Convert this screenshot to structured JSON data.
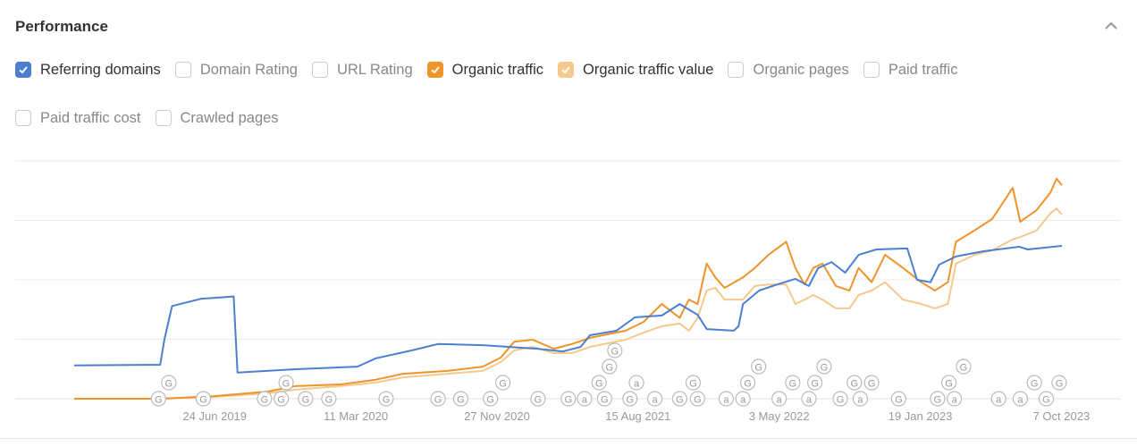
{
  "header": {
    "title": "Performance",
    "collapse_icon": "chevron-up-icon"
  },
  "legend": [
    {
      "label": "Referring domains",
      "checked": true,
      "color": "#4a7fd1"
    },
    {
      "label": "Domain Rating",
      "checked": false
    },
    {
      "label": "URL Rating",
      "checked": false
    },
    {
      "label": "Organic traffic",
      "checked": true,
      "color": "#f0932b"
    },
    {
      "label": "Organic traffic value",
      "checked": true,
      "color": "#f5c88e"
    },
    {
      "label": "Organic pages",
      "checked": false
    },
    {
      "label": "Paid traffic",
      "checked": false
    },
    {
      "label": "Paid traffic cost",
      "checked": false
    },
    {
      "label": "Crawled pages",
      "checked": false
    }
  ],
  "chart_data": {
    "type": "line",
    "xlim": [
      "2018-10-07",
      "2023-10-08"
    ],
    "ylim": [
      0,
      100
    ],
    "grid": true,
    "x_tick_labels": [
      "24 Jun 2019",
      "11 Mar 2020",
      "27 Nov 2020",
      "15 Aug 2021",
      "3 May 2022",
      "19 Jan 2023",
      "7 Oct 2023"
    ],
    "x_ticks": [
      "2019-06-24",
      "2020-03-11",
      "2020-11-27",
      "2021-08-15",
      "2022-05-03",
      "2023-01-19",
      "2023-10-07"
    ],
    "series": [
      {
        "name": "Referring domains",
        "color": "#4a7fd1",
        "points": [
          [
            "2018-10-07",
            14
          ],
          [
            "2019-03-15",
            14.3
          ],
          [
            "2019-03-23",
            25
          ],
          [
            "2019-04-06",
            39
          ],
          [
            "2019-05-29",
            42
          ],
          [
            "2019-07-29",
            43
          ],
          [
            "2019-08-05",
            11
          ],
          [
            "2019-11-20",
            12.4
          ],
          [
            "2020-03-14",
            13.5
          ],
          [
            "2020-04-17",
            17
          ],
          [
            "2020-06-22",
            20.3
          ],
          [
            "2020-08-10",
            23
          ],
          [
            "2020-11-01",
            22.5
          ],
          [
            "2021-02-10",
            21
          ],
          [
            "2021-03-29",
            19.9
          ],
          [
            "2021-05-01",
            21.8
          ],
          [
            "2021-05-18",
            26.7
          ],
          [
            "2021-07-06",
            28.6
          ],
          [
            "2021-08-09",
            34.2
          ],
          [
            "2021-09-28",
            35
          ],
          [
            "2021-10-31",
            39.8
          ],
          [
            "2021-12-03",
            35.3
          ],
          [
            "2021-12-20",
            29.3
          ],
          [
            "2022-02-08",
            28.6
          ],
          [
            "2022-02-17",
            30.5
          ],
          [
            "2022-02-25",
            39.8
          ],
          [
            "2022-03-27",
            45.5
          ],
          [
            "2022-04-30",
            48.1
          ],
          [
            "2022-06-02",
            50.4
          ],
          [
            "2022-06-27",
            47.4
          ],
          [
            "2022-07-14",
            54.9
          ],
          [
            "2022-08-08",
            57.5
          ],
          [
            "2022-09-02",
            53
          ],
          [
            "2022-09-27",
            60.5
          ],
          [
            "2022-10-30",
            62.8
          ],
          [
            "2022-12-26",
            63.2
          ],
          [
            "2023-01-13",
            50
          ],
          [
            "2023-02-07",
            49
          ],
          [
            "2023-02-23",
            56.4
          ],
          [
            "2023-03-26",
            59.8
          ],
          [
            "2023-05-15",
            62
          ],
          [
            "2023-07-21",
            63.9
          ],
          [
            "2023-08-06",
            62.8
          ],
          [
            "2023-10-08",
            64.3
          ]
        ]
      },
      {
        "name": "Organic traffic",
        "color": "#f0932b",
        "points": [
          [
            "2018-10-07",
            0
          ],
          [
            "2019-03-15",
            0
          ],
          [
            "2019-06-23",
            1.1
          ],
          [
            "2019-09-30",
            3
          ],
          [
            "2019-11-20",
            5.3
          ],
          [
            "2020-02-11",
            6
          ],
          [
            "2020-04-17",
            8
          ],
          [
            "2020-06-06",
            10.5
          ],
          [
            "2020-08-27",
            11.7
          ],
          [
            "2020-11-01",
            13.5
          ],
          [
            "2020-12-04",
            17.3
          ],
          [
            "2020-12-29",
            24
          ],
          [
            "2021-02-01",
            24.8
          ],
          [
            "2021-03-12",
            21
          ],
          [
            "2021-04-15",
            23
          ],
          [
            "2021-05-18",
            25.6
          ],
          [
            "2021-07-23",
            28.6
          ],
          [
            "2021-08-25",
            32.3
          ],
          [
            "2021-09-28",
            39.8
          ],
          [
            "2021-10-31",
            34
          ],
          [
            "2021-11-17",
            41.7
          ],
          [
            "2021-12-03",
            39.8
          ],
          [
            "2021-12-20",
            56.8
          ],
          [
            "2022-01-05",
            51
          ],
          [
            "2022-01-22",
            46.6
          ],
          [
            "2022-02-25",
            51
          ],
          [
            "2022-03-19",
            55
          ],
          [
            "2022-04-13",
            60.5
          ],
          [
            "2022-05-16",
            66
          ],
          [
            "2022-06-02",
            55
          ],
          [
            "2022-06-19",
            48
          ],
          [
            "2022-07-05",
            55
          ],
          [
            "2022-07-22",
            56.8
          ],
          [
            "2022-08-16",
            47.4
          ],
          [
            "2022-09-10",
            45.5
          ],
          [
            "2022-09-27",
            55
          ],
          [
            "2022-10-21",
            49
          ],
          [
            "2022-11-15",
            60.5
          ],
          [
            "2022-12-18",
            55
          ],
          [
            "2023-01-21",
            49
          ],
          [
            "2023-02-15",
            45.5
          ],
          [
            "2023-03-11",
            49
          ],
          [
            "2023-03-26",
            66
          ],
          [
            "2023-04-29",
            70.7
          ],
          [
            "2023-06-01",
            75.6
          ],
          [
            "2023-07-09",
            88.7
          ],
          [
            "2023-07-23",
            74.4
          ],
          [
            "2023-08-22",
            79.3
          ],
          [
            "2023-09-17",
            86.8
          ],
          [
            "2023-09-28",
            92.5
          ],
          [
            "2023-10-08",
            89.8
          ]
        ]
      },
      {
        "name": "Organic traffic value",
        "color": "#f5c88e",
        "points": [
          [
            "2018-10-07",
            0
          ],
          [
            "2019-03-15",
            0
          ],
          [
            "2019-06-23",
            0.8
          ],
          [
            "2019-09-30",
            2.3
          ],
          [
            "2019-11-20",
            3.8
          ],
          [
            "2020-02-11",
            5.3
          ],
          [
            "2020-04-17",
            6.8
          ],
          [
            "2020-06-06",
            9
          ],
          [
            "2020-08-27",
            10.5
          ],
          [
            "2020-11-01",
            11.7
          ],
          [
            "2020-12-04",
            15.4
          ],
          [
            "2020-12-29",
            20.3
          ],
          [
            "2021-02-01",
            21.8
          ],
          [
            "2021-03-12",
            19.2
          ],
          [
            "2021-04-15",
            19.2
          ],
          [
            "2021-05-18",
            21.8
          ],
          [
            "2021-07-23",
            24.8
          ],
          [
            "2021-08-25",
            27.8
          ],
          [
            "2021-09-28",
            30.5
          ],
          [
            "2021-10-31",
            31.6
          ],
          [
            "2021-11-17",
            28.6
          ],
          [
            "2021-12-03",
            34
          ],
          [
            "2021-12-20",
            45.5
          ],
          [
            "2022-01-05",
            46.6
          ],
          [
            "2022-01-22",
            41.7
          ],
          [
            "2022-02-25",
            41.7
          ],
          [
            "2022-03-19",
            47.4
          ],
          [
            "2022-04-13",
            48
          ],
          [
            "2022-05-16",
            48
          ],
          [
            "2022-06-02",
            39.8
          ],
          [
            "2022-06-19",
            41.7
          ],
          [
            "2022-07-05",
            43.6
          ],
          [
            "2022-07-22",
            41.7
          ],
          [
            "2022-08-16",
            38
          ],
          [
            "2022-09-10",
            38
          ],
          [
            "2022-09-27",
            43.6
          ],
          [
            "2022-10-21",
            45.5
          ],
          [
            "2022-11-15",
            49
          ],
          [
            "2022-12-18",
            41.7
          ],
          [
            "2023-01-21",
            39.8
          ],
          [
            "2023-02-15",
            38
          ],
          [
            "2023-03-11",
            39.8
          ],
          [
            "2023-03-26",
            56.8
          ],
          [
            "2023-04-29",
            60.5
          ],
          [
            "2023-06-01",
            62.4
          ],
          [
            "2023-07-09",
            67
          ],
          [
            "2023-07-23",
            68
          ],
          [
            "2023-08-22",
            70.7
          ],
          [
            "2023-09-17",
            78
          ],
          [
            "2023-09-28",
            80
          ],
          [
            "2023-10-08",
            77.4
          ]
        ]
      }
    ],
    "annotations": [
      [
        "2019-03-12",
        "G"
      ],
      [
        "2019-03-31",
        "G"
      ],
      [
        "2019-06-03",
        "G"
      ],
      [
        "2019-09-24",
        "G"
      ],
      [
        "2019-10-25",
        "G"
      ],
      [
        "2019-11-03",
        "G"
      ],
      [
        "2019-12-09",
        "G"
      ],
      [
        "2020-01-21",
        "G"
      ],
      [
        "2020-05-06",
        "G"
      ],
      [
        "2020-08-10",
        "G"
      ],
      [
        "2020-09-21",
        "G"
      ],
      [
        "2020-11-15",
        "G"
      ],
      [
        "2020-12-08",
        "G"
      ],
      [
        "2021-02-11",
        "G"
      ],
      [
        "2021-04-08",
        "G"
      ],
      [
        "2021-05-08",
        "a"
      ],
      [
        "2021-06-04",
        "G"
      ],
      [
        "2021-06-14",
        "G"
      ],
      [
        "2021-06-23",
        "G"
      ],
      [
        "2021-07-03",
        "G"
      ],
      [
        "2021-07-31",
        "G"
      ],
      [
        "2021-08-12",
        "a"
      ],
      [
        "2021-09-15",
        "a"
      ],
      [
        "2021-10-31",
        "G"
      ],
      [
        "2021-11-25",
        "G"
      ],
      [
        "2021-12-03",
        "G"
      ],
      [
        "2022-01-25",
        "a"
      ],
      [
        "2022-02-25",
        "a"
      ],
      [
        "2022-03-06",
        "G"
      ],
      [
        "2022-03-26",
        "G"
      ],
      [
        "2022-05-03",
        "a"
      ],
      [
        "2022-05-28",
        "G"
      ],
      [
        "2022-06-27",
        "a"
      ],
      [
        "2022-07-08",
        "G"
      ],
      [
        "2022-07-25",
        "G"
      ],
      [
        "2022-08-24",
        "G"
      ],
      [
        "2022-09-19",
        "G"
      ],
      [
        "2022-09-30",
        "a"
      ],
      [
        "2022-10-21",
        "G"
      ],
      [
        "2022-12-10",
        "G"
      ],
      [
        "2023-02-20",
        "G"
      ],
      [
        "2023-03-13",
        "G"
      ],
      [
        "2023-03-23",
        "a"
      ],
      [
        "2023-04-09",
        "G"
      ],
      [
        "2023-06-13",
        "a"
      ],
      [
        "2023-07-23",
        "a"
      ],
      [
        "2023-08-18",
        "G"
      ],
      [
        "2023-09-09",
        "G"
      ],
      [
        "2023-10-03",
        "G"
      ]
    ]
  }
}
